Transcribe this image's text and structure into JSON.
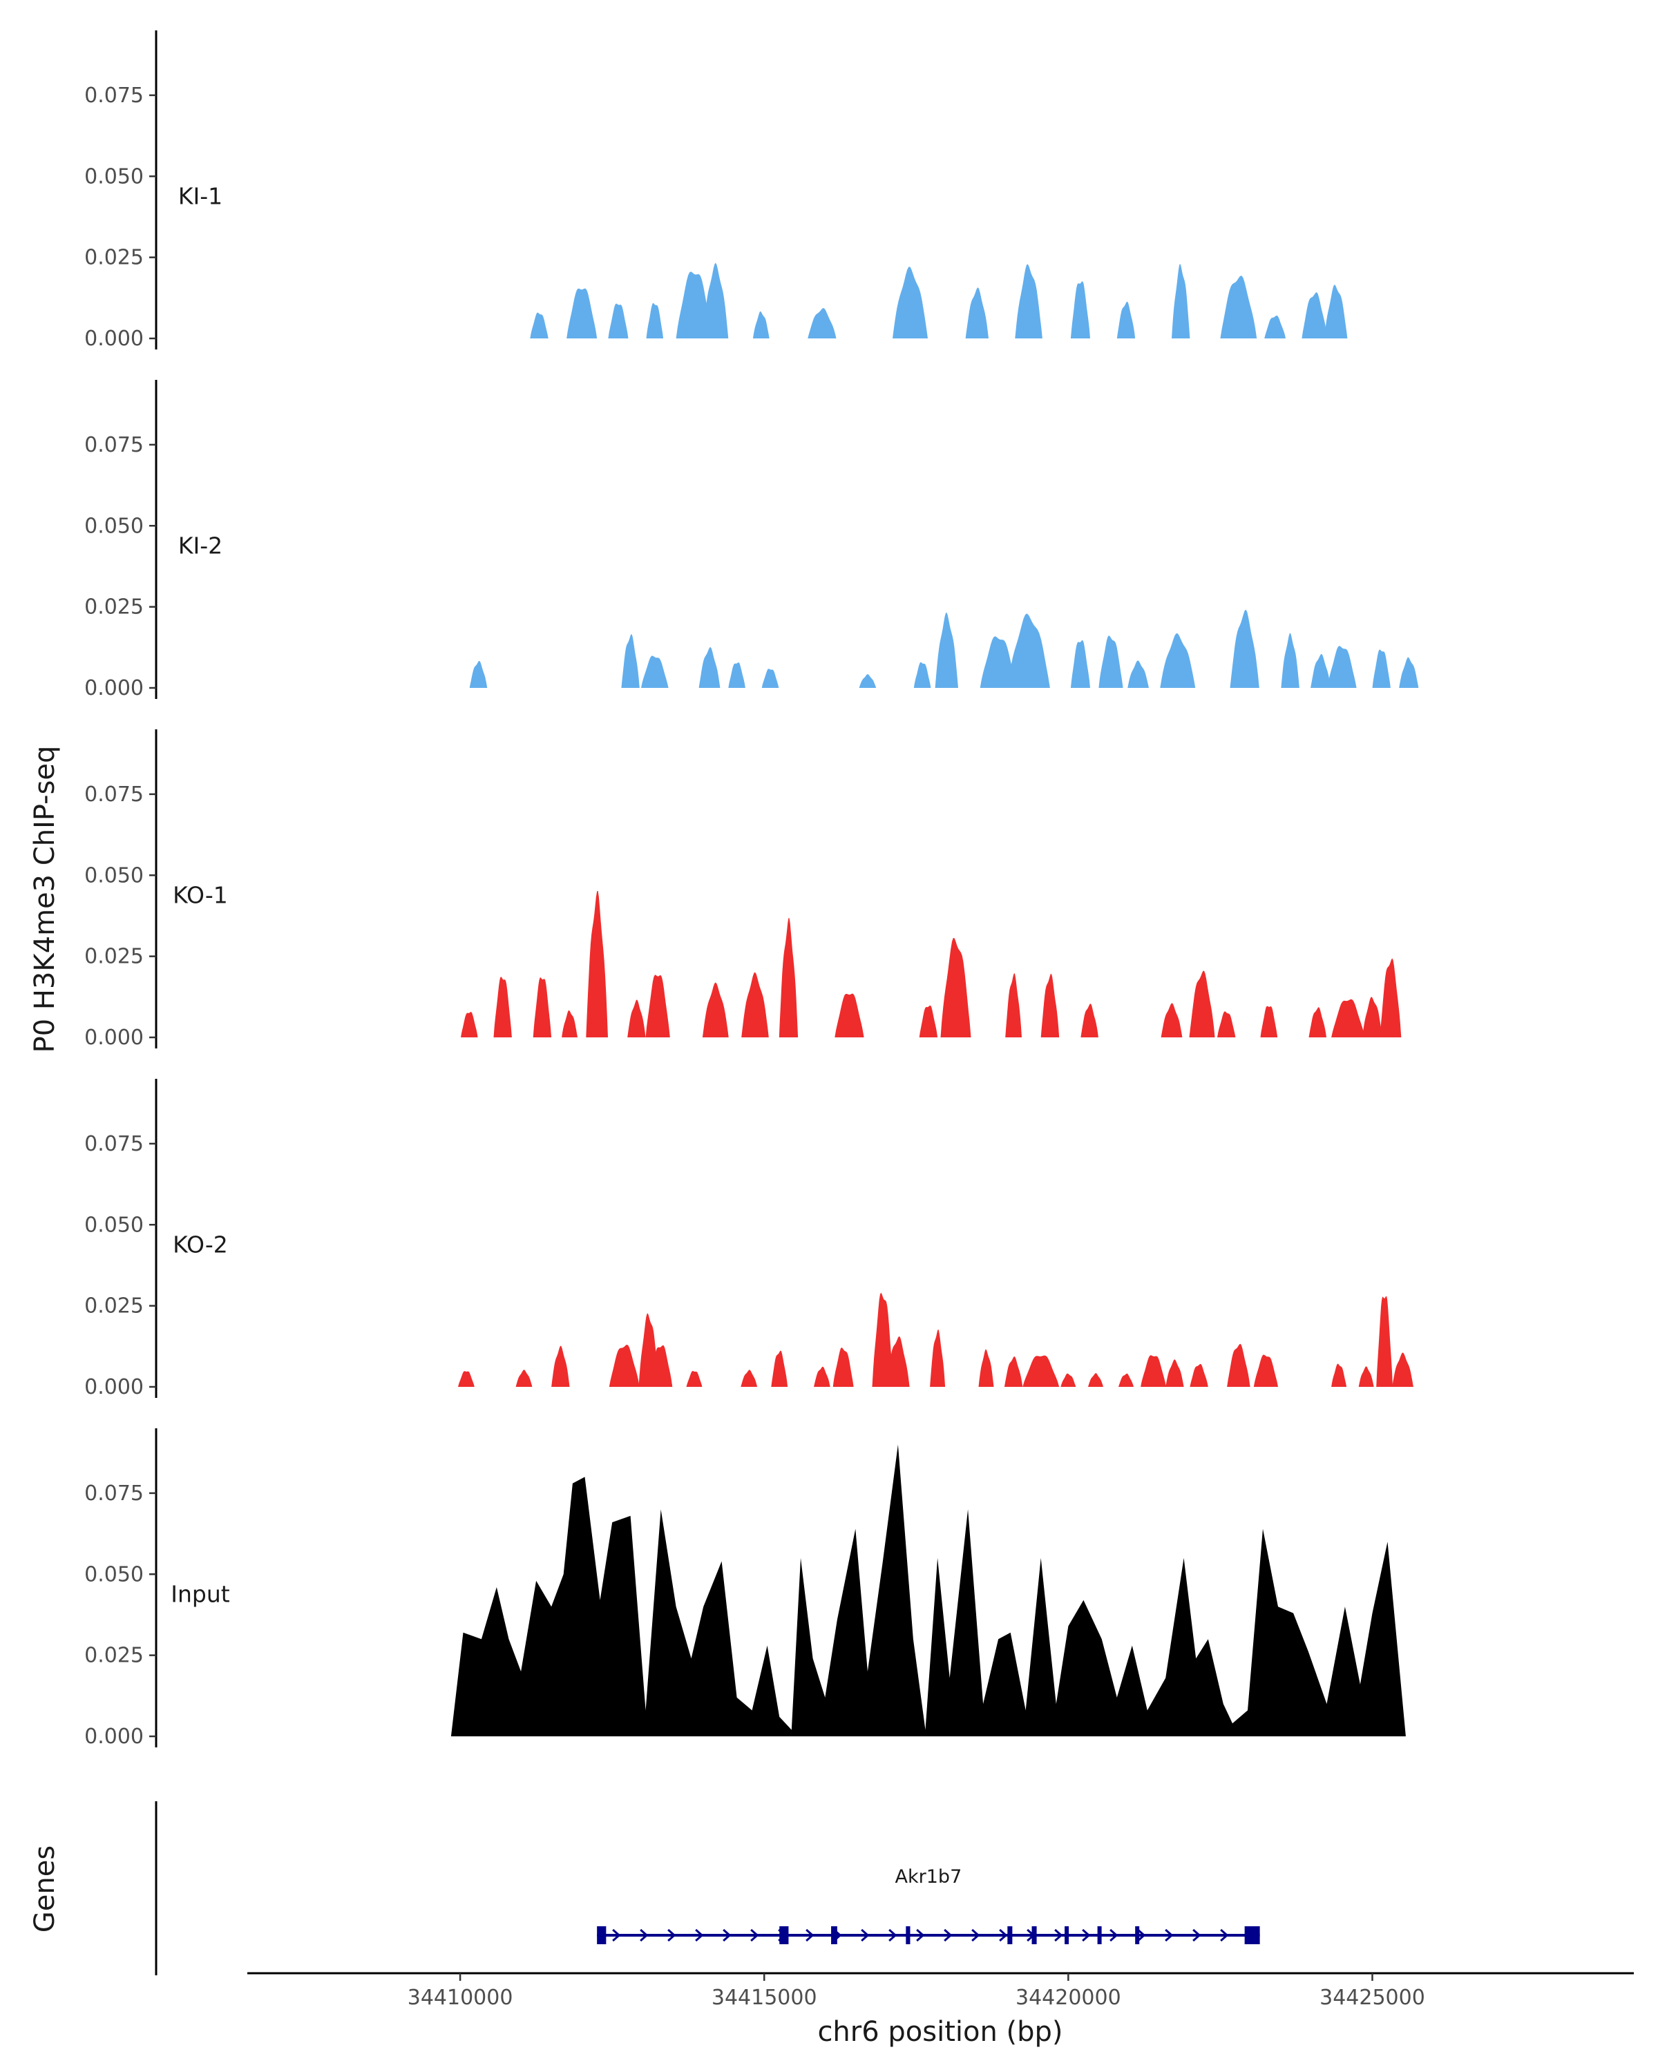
{
  "chart_data": {
    "type": "area",
    "title": "",
    "ylabel": "P0 H3K4me3 ChIP-seq",
    "xlabel": "chr6 position (bp)",
    "xlim": [
      34406500,
      34429300
    ],
    "x_ticks": [
      34410000,
      34415000,
      34420000,
      34425000
    ],
    "x_tick_labels": [
      "34410000",
      "34415000",
      "34420000",
      "34425000"
    ],
    "ylim": [
      0,
      0.095
    ],
    "y_ticks": [
      0,
      0.025,
      0.05,
      0.075
    ],
    "y_tick_labels": [
      "0.000",
      "0.025",
      "0.050",
      "0.075"
    ],
    "grid": false,
    "tracks": [
      {
        "name": "KI-1",
        "color": "#62AEEC",
        "peaks": [
          [
            34411300,
            0.008,
            300
          ],
          [
            34412000,
            0.016,
            500
          ],
          [
            34412600,
            0.011,
            330
          ],
          [
            34413200,
            0.011,
            280
          ],
          [
            34413850,
            0.021,
            600
          ],
          [
            34414200,
            0.022,
            420
          ],
          [
            34414950,
            0.008,
            270
          ],
          [
            34415950,
            0.009,
            470
          ],
          [
            34417400,
            0.021,
            580
          ],
          [
            34418500,
            0.015,
            380
          ],
          [
            34419350,
            0.022,
            450
          ],
          [
            34420200,
            0.018,
            320
          ],
          [
            34420950,
            0.011,
            300
          ],
          [
            34421850,
            0.022,
            300
          ],
          [
            34422800,
            0.019,
            600
          ],
          [
            34423400,
            0.007,
            350
          ],
          [
            34424050,
            0.014,
            420
          ],
          [
            34424400,
            0.016,
            380
          ]
        ]
      },
      {
        "name": "KI-2",
        "color": "#62AEEC",
        "peaks": [
          [
            34410300,
            0.008,
            290
          ],
          [
            34412800,
            0.016,
            300
          ],
          [
            34413200,
            0.01,
            450
          ],
          [
            34414100,
            0.012,
            350
          ],
          [
            34414550,
            0.008,
            280
          ],
          [
            34415100,
            0.006,
            280
          ],
          [
            34416700,
            0.004,
            280
          ],
          [
            34417600,
            0.008,
            280
          ],
          [
            34418000,
            0.022,
            380
          ],
          [
            34418850,
            0.016,
            600
          ],
          [
            34419350,
            0.022,
            700
          ],
          [
            34420200,
            0.015,
            320
          ],
          [
            34420700,
            0.016,
            400
          ],
          [
            34421150,
            0.008,
            350
          ],
          [
            34421800,
            0.016,
            580
          ],
          [
            34422900,
            0.023,
            480
          ],
          [
            34423650,
            0.016,
            300
          ],
          [
            34424150,
            0.01,
            330
          ],
          [
            34424500,
            0.013,
            480
          ],
          [
            34425150,
            0.012,
            300
          ],
          [
            34425600,
            0.009,
            320
          ]
        ]
      },
      {
        "name": "KO-1",
        "color": "#EE2C2C",
        "peaks": [
          [
            34410150,
            0.008,
            280
          ],
          [
            34410700,
            0.019,
            300
          ],
          [
            34411350,
            0.019,
            300
          ],
          [
            34411800,
            0.008,
            260
          ],
          [
            34412250,
            0.043,
            360
          ],
          [
            34412900,
            0.011,
            300
          ],
          [
            34413250,
            0.02,
            400
          ],
          [
            34414200,
            0.016,
            430
          ],
          [
            34414850,
            0.019,
            450
          ],
          [
            34415400,
            0.035,
            310
          ],
          [
            34416400,
            0.014,
            480
          ],
          [
            34417700,
            0.01,
            300
          ],
          [
            34418150,
            0.03,
            500
          ],
          [
            34419100,
            0.019,
            270
          ],
          [
            34419700,
            0.019,
            300
          ],
          [
            34420350,
            0.01,
            290
          ],
          [
            34421700,
            0.01,
            350
          ],
          [
            34422200,
            0.02,
            420
          ],
          [
            34422600,
            0.008,
            300
          ],
          [
            34423300,
            0.01,
            280
          ],
          [
            34424100,
            0.009,
            290
          ],
          [
            34424600,
            0.012,
            550
          ],
          [
            34425000,
            0.012,
            330
          ],
          [
            34425300,
            0.024,
            350
          ]
        ]
      },
      {
        "name": "KO-2",
        "color": "#EE2C2C",
        "peaks": [
          [
            34410100,
            0.005,
            270
          ],
          [
            34411050,
            0.005,
            270
          ],
          [
            34411650,
            0.012,
            300
          ],
          [
            34412700,
            0.013,
            500
          ],
          [
            34413100,
            0.022,
            330
          ],
          [
            34413300,
            0.013,
            380
          ],
          [
            34413850,
            0.005,
            260
          ],
          [
            34414750,
            0.005,
            270
          ],
          [
            34415250,
            0.011,
            270
          ],
          [
            34415950,
            0.006,
            270
          ],
          [
            34416300,
            0.012,
            340
          ],
          [
            34416950,
            0.029,
            350
          ],
          [
            34417200,
            0.015,
            380
          ],
          [
            34417850,
            0.017,
            250
          ],
          [
            34418650,
            0.011,
            250
          ],
          [
            34419100,
            0.009,
            300
          ],
          [
            34419550,
            0.01,
            600
          ],
          [
            34420000,
            0.004,
            250
          ],
          [
            34420450,
            0.004,
            250
          ],
          [
            34420950,
            0.004,
            250
          ],
          [
            34421400,
            0.01,
            420
          ],
          [
            34421750,
            0.008,
            300
          ],
          [
            34422150,
            0.007,
            300
          ],
          [
            34422800,
            0.013,
            380
          ],
          [
            34423250,
            0.01,
            400
          ],
          [
            34424450,
            0.007,
            250
          ],
          [
            34424900,
            0.006,
            250
          ],
          [
            34425200,
            0.029,
            270
          ],
          [
            34425500,
            0.01,
            350
          ]
        ]
      },
      {
        "name": "Input",
        "color": "#000000",
        "x": [
          34409850,
          34410050,
          34410350,
          34410600,
          34410800,
          34411000,
          34411250,
          34411500,
          34411700,
          34411850,
          34412050,
          34412300,
          34412500,
          34412800,
          34413050,
          34413300,
          34413550,
          34413800,
          34414000,
          34414300,
          34414550,
          34414800,
          34415050,
          34415250,
          34415450,
          34415600,
          34415800,
          34416000,
          34416200,
          34416500,
          34416700,
          34416950,
          34417200,
          34417450,
          34417650,
          34417850,
          34418050,
          34418350,
          34418600,
          34418850,
          34419050,
          34419300,
          34419550,
          34419800,
          34420000,
          34420250,
          34420550,
          34420800,
          34421050,
          34421300,
          34421600,
          34421900,
          34422100,
          34422300,
          34422550,
          34422700,
          34422950,
          34423200,
          34423450,
          34423700,
          34423950,
          34424250,
          34424550,
          34424800,
          34425000,
          34425250,
          34425550
        ],
        "y": [
          0,
          0.032,
          0.03,
          0.046,
          0.03,
          0.02,
          0.048,
          0.04,
          0.05,
          0.078,
          0.08,
          0.042,
          0.066,
          0.068,
          0.008,
          0.07,
          0.04,
          0.024,
          0.04,
          0.054,
          0.012,
          0.008,
          0.028,
          0.006,
          0.002,
          0.055,
          0.024,
          0.012,
          0.036,
          0.064,
          0.02,
          0.054,
          0.09,
          0.03,
          0.002,
          0.055,
          0.018,
          0.07,
          0.01,
          0.03,
          0.032,
          0.008,
          0.055,
          0.01,
          0.034,
          0.042,
          0.03,
          0.012,
          0.028,
          0.008,
          0.018,
          0.055,
          0.024,
          0.03,
          0.01,
          0.004,
          0.008,
          0.064,
          0.04,
          0.038,
          0.026,
          0.01,
          0.04,
          0.016,
          0.038,
          0.06,
          0
        ]
      }
    ],
    "genes": {
      "title": "Genes",
      "label": "Akr1b7",
      "start": 34412250,
      "end": 34423150,
      "strand": "+",
      "color": "#00008B",
      "exons": [
        [
          34412250,
          34412400
        ],
        [
          34415250,
          34415400
        ],
        [
          34416100,
          34416200
        ],
        [
          34417330,
          34417400
        ],
        [
          34419000,
          34419080
        ],
        [
          34419400,
          34419480
        ],
        [
          34419940,
          34420000
        ],
        [
          34420480,
          34420540
        ],
        [
          34421100,
          34421150
        ],
        [
          34422900,
          34423150
        ]
      ]
    }
  }
}
